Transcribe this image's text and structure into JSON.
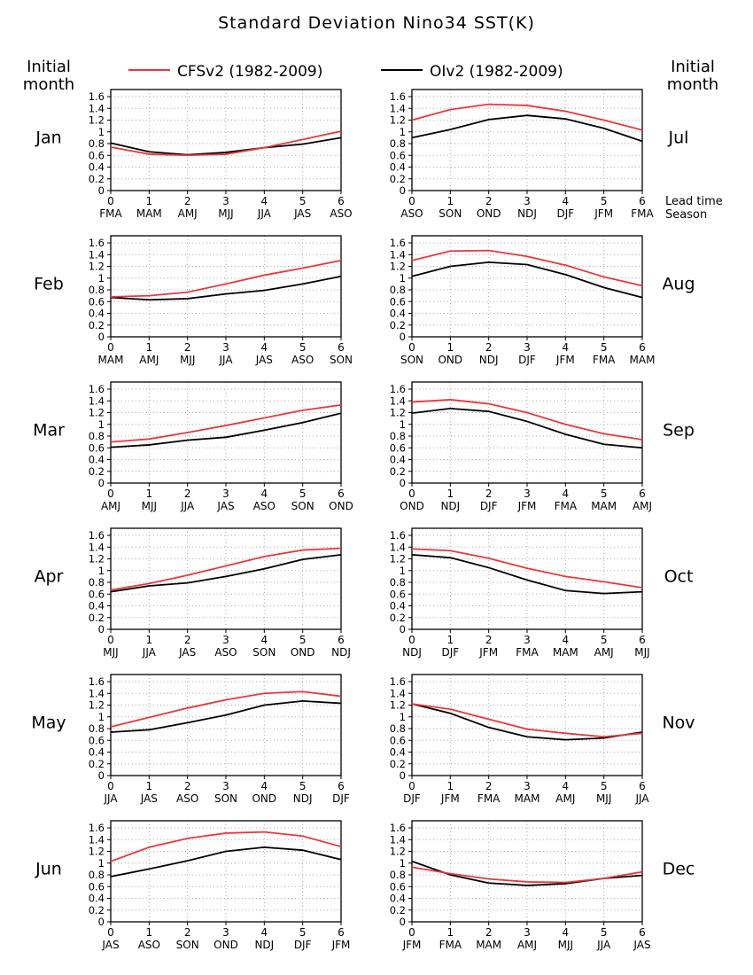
{
  "title": "Standard Deviation Nino34 SST(K)",
  "header_left": [
    "Initial",
    "month"
  ],
  "header_right": [
    "Initial",
    "month"
  ],
  "lead_time_label": "Lead time",
  "season_label": "Season",
  "colors": {
    "cfs": "#e8383d",
    "oi": "#000000",
    "grid": "#aaaaaa"
  },
  "chart_data": {
    "type": "line",
    "ylim": [
      0,
      1.6
    ],
    "yticks": [
      "0",
      "0.2",
      "0.4",
      "0.6",
      "0.8",
      "1",
      "1.2",
      "1.4",
      "1.6"
    ],
    "x_lead": [
      "0",
      "1",
      "2",
      "3",
      "4",
      "5",
      "6"
    ],
    "grid": true,
    "legend_position": "top",
    "legend": [
      {
        "name": "CFSv2 (1982-2009)",
        "color": "#e8383d"
      },
      {
        "name": "OIv2 (1982-2009)",
        "color": "#000000"
      }
    ],
    "panels": [
      {
        "month": "Jan",
        "seasons": [
          "FMA",
          "MAM",
          "AMJ",
          "MJJ",
          "JJA",
          "JAS",
          "ASO"
        ],
        "cfs": [
          0.74,
          0.62,
          0.6,
          0.62,
          0.73,
          0.87,
          1.01
        ],
        "oi": [
          0.81,
          0.66,
          0.61,
          0.65,
          0.73,
          0.79,
          0.9
        ]
      },
      {
        "month": "Jul",
        "seasons": [
          "ASO",
          "SON",
          "OND",
          "NDJ",
          "DJF",
          "JFM",
          "FMA"
        ],
        "cfs": [
          1.2,
          1.38,
          1.47,
          1.45,
          1.35,
          1.2,
          1.03
        ],
        "oi": [
          0.9,
          1.04,
          1.21,
          1.28,
          1.22,
          1.06,
          0.84
        ]
      },
      {
        "month": "Feb",
        "seasons": [
          "MAM",
          "AMJ",
          "MJJ",
          "JJA",
          "JAS",
          "ASO",
          "SON"
        ],
        "cfs": [
          0.68,
          0.7,
          0.76,
          0.9,
          1.05,
          1.17,
          1.3
        ],
        "oi": [
          0.67,
          0.63,
          0.65,
          0.73,
          0.79,
          0.9,
          1.03
        ]
      },
      {
        "month": "Aug",
        "seasons": [
          "SON",
          "OND",
          "NDJ",
          "DJF",
          "JFM",
          "FMA",
          "MAM"
        ],
        "cfs": [
          1.3,
          1.46,
          1.47,
          1.37,
          1.22,
          1.02,
          0.87
        ],
        "oi": [
          1.03,
          1.2,
          1.27,
          1.23,
          1.06,
          0.84,
          0.67
        ]
      },
      {
        "month": "Mar",
        "seasons": [
          "AMJ",
          "MJJ",
          "JJA",
          "JAS",
          "ASO",
          "SON",
          "OND"
        ],
        "cfs": [
          0.7,
          0.75,
          0.86,
          0.98,
          1.11,
          1.24,
          1.33
        ],
        "oi": [
          0.61,
          0.65,
          0.73,
          0.78,
          0.9,
          1.03,
          1.19
        ]
      },
      {
        "month": "Sep",
        "seasons": [
          "OND",
          "NDJ",
          "DJF",
          "JFM",
          "FMA",
          "MAM",
          "AMJ"
        ],
        "cfs": [
          1.38,
          1.42,
          1.35,
          1.2,
          1.0,
          0.84,
          0.74
        ],
        "oi": [
          1.19,
          1.27,
          1.22,
          1.05,
          0.83,
          0.66,
          0.6
        ]
      },
      {
        "month": "Apr",
        "seasons": [
          "MJJ",
          "JJA",
          "JAS",
          "ASO",
          "SON",
          "OND",
          "NDJ"
        ],
        "cfs": [
          0.67,
          0.78,
          0.92,
          1.08,
          1.24,
          1.35,
          1.38
        ],
        "oi": [
          0.64,
          0.74,
          0.79,
          0.9,
          1.03,
          1.19,
          1.27
        ]
      },
      {
        "month": "Oct",
        "seasons": [
          "NDJ",
          "DJF",
          "JFM",
          "FMA",
          "MAM",
          "AMJ",
          "MJJ"
        ],
        "cfs": [
          1.37,
          1.34,
          1.21,
          1.04,
          0.9,
          0.81,
          0.71
        ],
        "oi": [
          1.27,
          1.22,
          1.05,
          0.84,
          0.66,
          0.61,
          0.64
        ]
      },
      {
        "month": "May",
        "seasons": [
          "JJA",
          "JAS",
          "ASO",
          "SON",
          "OND",
          "NDJ",
          "DJF"
        ],
        "cfs": [
          0.83,
          0.99,
          1.15,
          1.29,
          1.4,
          1.43,
          1.35
        ],
        "oi": [
          0.74,
          0.78,
          0.9,
          1.03,
          1.2,
          1.27,
          1.23
        ]
      },
      {
        "month": "Nov",
        "seasons": [
          "DJF",
          "JFM",
          "FMA",
          "MAM",
          "AMJ",
          "MJJ",
          "JJA"
        ],
        "cfs": [
          1.22,
          1.13,
          0.96,
          0.79,
          0.72,
          0.66,
          0.72
        ],
        "oi": [
          1.22,
          1.06,
          0.82,
          0.66,
          0.61,
          0.64,
          0.74
        ]
      },
      {
        "month": "Jun",
        "seasons": [
          "JAS",
          "ASO",
          "SON",
          "OND",
          "NDJ",
          "DJF",
          "JFM"
        ],
        "cfs": [
          1.03,
          1.27,
          1.42,
          1.51,
          1.53,
          1.46,
          1.28
        ],
        "oi": [
          0.77,
          0.9,
          1.04,
          1.2,
          1.27,
          1.22,
          1.06
        ]
      },
      {
        "month": "Dec",
        "seasons": [
          "JFM",
          "FMA",
          "MAM",
          "AMJ",
          "MJJ",
          "JJA",
          "JAS"
        ],
        "cfs": [
          0.93,
          0.82,
          0.73,
          0.68,
          0.67,
          0.74,
          0.85
        ],
        "oi": [
          1.03,
          0.8,
          0.66,
          0.62,
          0.65,
          0.74,
          0.79
        ]
      }
    ]
  }
}
